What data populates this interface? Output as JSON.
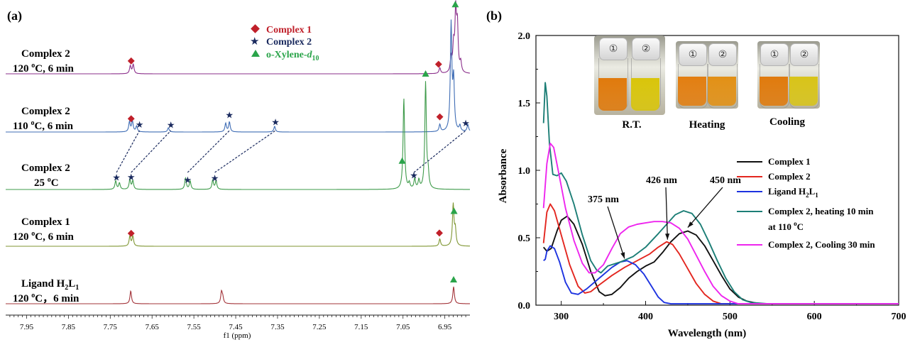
{
  "panel_a": {
    "label": "(a)",
    "xaxis_title": "f1 (ppm)",
    "xlim": [
      8.0,
      6.89
    ],
    "tick_values": [
      7.95,
      7.85,
      7.75,
      7.65,
      7.55,
      7.45,
      7.35,
      7.25,
      7.15,
      7.05,
      6.95
    ],
    "tick_labels": [
      "7.95",
      "7.85",
      "7.75",
      "7.65",
      "7.55",
      "7.45",
      "7.35",
      "7.25",
      "7.15",
      "7.05",
      "6.95"
    ],
    "legend": {
      "complex1": "Complex 1",
      "complex2": "Complex 2",
      "xylene_main": "o-Xylene-",
      "xylene_italic": "d",
      "xylene_sub": "10"
    },
    "traces": [
      {
        "key": "c2_120",
        "color": "#8b2f8b",
        "line1": "Complex 2",
        "line2_num": "120 ",
        "line2_sup": "o",
        "line2_rest": "C, 6 min",
        "peaks": [
          [
            7.702,
            11
          ],
          [
            7.695,
            13
          ],
          [
            6.962,
            8
          ],
          [
            6.935,
            20
          ],
          [
            6.929,
            36
          ],
          [
            6.924,
            82
          ],
          [
            6.92,
            62
          ],
          [
            6.912,
            14
          ]
        ],
        "markers": [
          {
            "type": "diamond",
            "ppm": 7.7
          },
          {
            "type": "diamond",
            "ppm": 6.965
          },
          {
            "type": "triangle",
            "ppm": 6.925
          }
        ]
      },
      {
        "key": "c2_110",
        "color": "#3f6db5",
        "line1": "Complex 2",
        "line2_num": "110 ",
        "line2_sup": "o",
        "line2_rest": "C, 6 min",
        "peaks": [
          [
            7.704,
            14
          ],
          [
            7.697,
            15
          ],
          [
            7.687,
            8
          ],
          [
            7.611,
            6
          ],
          [
            7.474,
            12
          ],
          [
            7.465,
            14
          ],
          [
            7.357,
            8
          ],
          [
            6.962,
            10
          ],
          [
            6.935,
            150
          ],
          [
            6.929,
            70
          ],
          [
            6.914,
            8
          ],
          [
            6.895,
            10
          ]
        ],
        "markers": [
          {
            "type": "diamond",
            "ppm": 7.7
          },
          {
            "type": "star",
            "ppm": 7.68
          },
          {
            "type": "star",
            "ppm": 7.605
          },
          {
            "type": "star",
            "ppm": 7.465
          },
          {
            "type": "star",
            "ppm": 7.355
          },
          {
            "type": "diamond",
            "ppm": 6.962
          },
          {
            "type": "star",
            "ppm": 6.9
          }
        ]
      },
      {
        "key": "c2_25",
        "color": "#3f9b4b",
        "line1": "Complex 2",
        "line2_num": "25 ",
        "line2_sup": "o",
        "line2_rest": "C",
        "peaks": [
          [
            7.737,
            12
          ],
          [
            7.728,
            9
          ],
          [
            7.703,
            14
          ],
          [
            7.696,
            12
          ],
          [
            7.57,
            16
          ],
          [
            7.559,
            12
          ],
          [
            7.505,
            13
          ],
          [
            7.497,
            12
          ],
          [
            7.048,
            128
          ],
          [
            7.035,
            8
          ],
          [
            7.022,
            14
          ],
          [
            7.012,
            12
          ],
          [
            6.996,
            150
          ],
          [
            6.99,
            20
          ]
        ],
        "markers": [
          {
            "type": "star",
            "ppm": 7.735
          },
          {
            "type": "star",
            "ppm": 7.7
          },
          {
            "type": "star",
            "ppm": 7.565
          },
          {
            "type": "star",
            "ppm": 7.5
          },
          {
            "type": "triangle",
            "ppm": 7.052
          },
          {
            "type": "triangle",
            "ppm": 6.996
          },
          {
            "type": "star",
            "ppm": 7.024
          }
        ]
      },
      {
        "key": "c1_120",
        "color": "#7f9632",
        "line1": "Complex 1",
        "line2_num": "120 ",
        "line2_sup": "o",
        "line2_rest": "C, 6 min",
        "peaks": [
          [
            7.703,
            14
          ],
          [
            7.696,
            14
          ],
          [
            6.962,
            10
          ],
          [
            6.93,
            58
          ],
          [
            6.925,
            22
          ]
        ],
        "markers": [
          {
            "type": "diamond",
            "ppm": 7.7
          },
          {
            "type": "diamond",
            "ppm": 6.963
          },
          {
            "type": "triangle",
            "ppm": 6.928
          }
        ]
      },
      {
        "key": "lig_120",
        "color": "#a3343a",
        "line1": "Ligand H",
        "line1_sub1": "2",
        "line1_mid": "L",
        "line1_sub2": "1",
        "line2_num": "120 ",
        "line2_sup": "o",
        "line2_rest": "C，6 min",
        "peaks": [
          [
            7.701,
            18
          ],
          [
            7.484,
            16
          ],
          [
            7.481,
            8
          ],
          [
            6.929,
            24
          ]
        ],
        "markers": [
          {
            "type": "triangle",
            "ppm": 6.929
          }
        ]
      }
    ],
    "correlations": [
      [
        7.735,
        7.68
      ],
      [
        7.7,
        7.605
      ],
      [
        7.565,
        7.465
      ],
      [
        7.5,
        7.355
      ],
      [
        7.024,
        6.9
      ]
    ]
  },
  "panel_b": {
    "label": "(b)",
    "photo_captions": [
      "R.T.",
      "Heating",
      "Cooling"
    ],
    "vial_labels": [
      "①",
      "②"
    ],
    "vial_colors": [
      [
        "#e07a0c",
        "#d9c50a"
      ],
      [
        "#e37e10",
        "#e29015"
      ],
      [
        "#e07a0c",
        "#d8c418"
      ]
    ]
  },
  "chart_data": {
    "type": "line",
    "title": "",
    "xlabel": "Wavelength (nm)",
    "ylabel": "Absorbance",
    "xlim": [
      270,
      700
    ],
    "ylim": [
      0,
      2.0
    ],
    "x_ticks": [
      300,
      400,
      500,
      600,
      700
    ],
    "y_ticks": [
      0.0,
      0.5,
      1.0,
      1.5,
      2.0
    ],
    "y_tick_labels": [
      "0.0",
      "0.5",
      "1.0",
      "1.5",
      "2.0"
    ],
    "series": [
      {
        "name": "Complex 1",
        "color": "#111111",
        "points": [
          [
            279,
            0.43
          ],
          [
            283,
            0.4
          ],
          [
            288,
            0.42
          ],
          [
            295,
            0.55
          ],
          [
            300,
            0.63
          ],
          [
            307,
            0.66
          ],
          [
            315,
            0.6
          ],
          [
            325,
            0.45
          ],
          [
            335,
            0.25
          ],
          [
            345,
            0.1
          ],
          [
            352,
            0.07
          ],
          [
            360,
            0.08
          ],
          [
            370,
            0.13
          ],
          [
            380,
            0.2
          ],
          [
            390,
            0.25
          ],
          [
            400,
            0.29
          ],
          [
            410,
            0.32
          ],
          [
            420,
            0.39
          ],
          [
            430,
            0.47
          ],
          [
            440,
            0.53
          ],
          [
            450,
            0.55
          ],
          [
            460,
            0.52
          ],
          [
            470,
            0.44
          ],
          [
            480,
            0.33
          ],
          [
            490,
            0.22
          ],
          [
            500,
            0.12
          ],
          [
            510,
            0.06
          ],
          [
            520,
            0.03
          ],
          [
            535,
            0.01
          ],
          [
            560,
            0.01
          ],
          [
            700,
            0.01
          ]
        ]
      },
      {
        "name": "Complex 2",
        "color": "#e3261f",
        "points": [
          [
            279,
            0.46
          ],
          [
            283,
            0.69
          ],
          [
            287,
            0.75
          ],
          [
            292,
            0.7
          ],
          [
            300,
            0.52
          ],
          [
            310,
            0.3
          ],
          [
            320,
            0.14
          ],
          [
            328,
            0.09
          ],
          [
            335,
            0.1
          ],
          [
            345,
            0.15
          ],
          [
            360,
            0.22
          ],
          [
            375,
            0.28
          ],
          [
            390,
            0.33
          ],
          [
            405,
            0.38
          ],
          [
            415,
            0.43
          ],
          [
            425,
            0.47
          ],
          [
            432,
            0.45
          ],
          [
            440,
            0.38
          ],
          [
            450,
            0.27
          ],
          [
            460,
            0.16
          ],
          [
            470,
            0.08
          ],
          [
            480,
            0.03
          ],
          [
            490,
            0.01
          ],
          [
            700,
            0.01
          ]
        ]
      },
      {
        "name": "Ligand H2L1",
        "color": "#1d33e0",
        "points": [
          [
            279,
            0.33
          ],
          [
            281,
            0.34
          ],
          [
            283,
            0.4
          ],
          [
            287,
            0.44
          ],
          [
            292,
            0.42
          ],
          [
            298,
            0.32
          ],
          [
            305,
            0.17
          ],
          [
            312,
            0.09
          ],
          [
            320,
            0.08
          ],
          [
            330,
            0.12
          ],
          [
            345,
            0.2
          ],
          [
            360,
            0.28
          ],
          [
            370,
            0.32
          ],
          [
            378,
            0.33
          ],
          [
            388,
            0.3
          ],
          [
            398,
            0.23
          ],
          [
            408,
            0.13
          ],
          [
            415,
            0.06
          ],
          [
            422,
            0.02
          ],
          [
            430,
            0.01
          ],
          [
            700,
            0.01
          ]
        ]
      },
      {
        "name": "Complex 2, heating 10 min at 110 °C",
        "color": "#1c7e76",
        "points": [
          [
            279,
            1.35
          ],
          [
            281,
            1.65
          ],
          [
            283,
            1.55
          ],
          [
            286,
            1.2
          ],
          [
            290,
            0.97
          ],
          [
            295,
            0.96
          ],
          [
            300,
            0.98
          ],
          [
            306,
            0.92
          ],
          [
            315,
            0.75
          ],
          [
            325,
            0.52
          ],
          [
            335,
            0.33
          ],
          [
            342,
            0.26
          ],
          [
            347,
            0.24
          ],
          [
            355,
            0.29
          ],
          [
            370,
            0.32
          ],
          [
            385,
            0.36
          ],
          [
            400,
            0.43
          ],
          [
            415,
            0.53
          ],
          [
            425,
            0.6
          ],
          [
            435,
            0.67
          ],
          [
            445,
            0.7
          ],
          [
            455,
            0.68
          ],
          [
            465,
            0.6
          ],
          [
            475,
            0.47
          ],
          [
            485,
            0.33
          ],
          [
            495,
            0.2
          ],
          [
            505,
            0.1
          ],
          [
            515,
            0.04
          ],
          [
            525,
            0.02
          ],
          [
            545,
            0.01
          ],
          [
            700,
            0.01
          ]
        ]
      },
      {
        "name": "Complex 2, Cooling 30 min",
        "color": "#ee25ee",
        "points": [
          [
            279,
            0.72
          ],
          [
            283,
            1.05
          ],
          [
            287,
            1.2
          ],
          [
            291,
            1.17
          ],
          [
            297,
            0.98
          ],
          [
            305,
            0.72
          ],
          [
            315,
            0.48
          ],
          [
            325,
            0.31
          ],
          [
            333,
            0.24
          ],
          [
            340,
            0.24
          ],
          [
            350,
            0.3
          ],
          [
            360,
            0.42
          ],
          [
            370,
            0.53
          ],
          [
            380,
            0.58
          ],
          [
            390,
            0.6
          ],
          [
            400,
            0.61
          ],
          [
            410,
            0.62
          ],
          [
            420,
            0.62
          ],
          [
            430,
            0.61
          ],
          [
            440,
            0.57
          ],
          [
            450,
            0.49
          ],
          [
            460,
            0.37
          ],
          [
            470,
            0.25
          ],
          [
            480,
            0.14
          ],
          [
            490,
            0.07
          ],
          [
            500,
            0.03
          ],
          [
            510,
            0.01
          ],
          [
            520,
            0.01
          ],
          [
            700,
            0.01
          ]
        ]
      }
    ],
    "legend": {
      "c1": "Complex 1",
      "c2": "Complex 2",
      "lig_main": "Ligand H",
      "lig_sub1": "2",
      "lig_mid": "L",
      "lig_sub2": "1",
      "heat_line1": "Complex 2, heating 10 min",
      "heat_line2_main": "at 110 ",
      "heat_line2_sup": "o",
      "heat_line2_rest": "C",
      "cool": "Complex 2, Cooling 30 min"
    },
    "annotations": [
      {
        "text": "375 nm",
        "x": 375,
        "y": 0.33
      },
      {
        "text": "426 nm",
        "x": 426,
        "y": 0.47
      },
      {
        "text": "450 nm",
        "x": 450,
        "y": 0.56
      }
    ]
  }
}
